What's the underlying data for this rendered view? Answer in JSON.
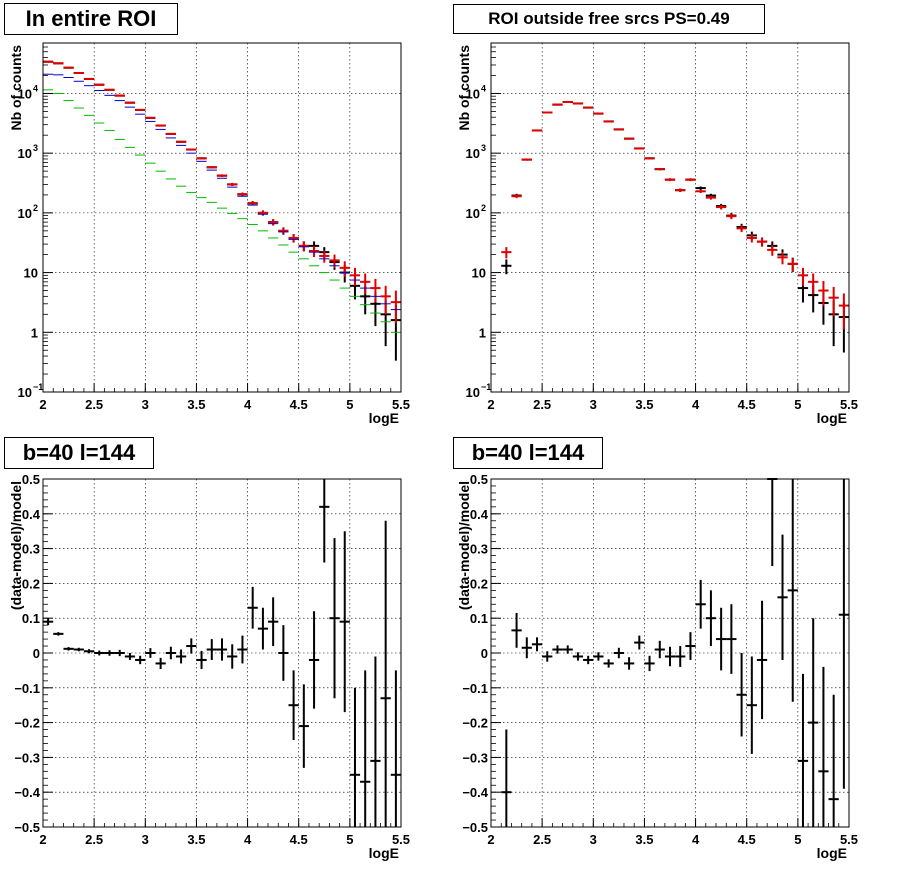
{
  "chart_data": [
    {
      "type": "line",
      "title": "In entire ROI",
      "xlabel": "logE",
      "ylabel": "Nb of counts",
      "xlim": [
        2,
        5.5
      ],
      "ylim": [
        0.1,
        70000
      ],
      "yscale": "log",
      "grid": true,
      "x_ticks": [
        "2",
        "2.5",
        "3",
        "3.5",
        "4",
        "4.5",
        "5",
        "5.5"
      ],
      "y_ticks": [
        {
          "value": 0.1,
          "base": "10",
          "exp": "−1"
        },
        {
          "value": 1,
          "text": "1"
        },
        {
          "value": 10,
          "text": "10"
        },
        {
          "value": 100,
          "base": "10",
          "exp": "2"
        },
        {
          "value": 1000,
          "base": "10",
          "exp": "3"
        },
        {
          "value": 10000,
          "base": "10",
          "exp": "4"
        }
      ],
      "x": [
        2.05,
        2.15,
        2.25,
        2.35,
        2.45,
        2.55,
        2.65,
        2.75,
        2.85,
        2.95,
        3.05,
        3.15,
        3.25,
        3.35,
        3.45,
        3.55,
        3.65,
        3.75,
        3.85,
        3.95,
        4.05,
        4.15,
        4.25,
        4.35,
        4.45,
        4.55,
        4.65,
        4.75,
        4.85,
        4.95,
        5.05,
        5.15,
        5.25,
        5.35,
        5.45
      ],
      "series": [
        {
          "style": "data",
          "color": "#000000",
          "values": [
            34000,
            32000,
            27000,
            22000,
            17500,
            14000,
            11500,
            9200,
            7000,
            5300,
            3900,
            2900,
            2100,
            1550,
            1150,
            820,
            580,
            420,
            300,
            205,
            145,
            100,
            70,
            50,
            38,
            28,
            28,
            22,
            15,
            10,
            6,
            4,
            3,
            2,
            1.6
          ]
        },
        {
          "style": "model",
          "color": "#e00000",
          "values": [
            34000,
            32000,
            27000,
            22000,
            17500,
            14000,
            11500,
            9200,
            7000,
            5300,
            3900,
            2900,
            2100,
            1550,
            1150,
            820,
            580,
            420,
            300,
            205,
            145,
            100,
            70,
            50,
            38,
            28,
            23,
            19,
            16,
            12,
            9,
            7,
            5.5,
            4,
            3.2
          ]
        },
        {
          "style": "model",
          "color": "#0000cc",
          "values": [
            21000,
            20500,
            18500,
            16000,
            13500,
            11200,
            9300,
            7600,
            5900,
            4500,
            3400,
            2500,
            1800,
            1350,
            1000,
            730,
            520,
            380,
            270,
            190,
            135,
            95,
            66,
            48,
            36,
            27,
            22,
            17,
            13,
            10,
            7.5,
            5.5,
            4,
            3,
            2.4
          ]
        },
        {
          "style": "model",
          "color": "#00bb00",
          "values": [
            11500,
            10000,
            7600,
            5700,
            4300,
            3200,
            2400,
            1700,
            1250,
            930,
            680,
            500,
            370,
            280,
            220,
            180,
            150,
            120,
            98,
            80,
            64,
            50,
            38,
            29,
            22,
            17,
            13,
            10,
            7.5,
            5.5,
            4,
            2.9,
            2.1,
            1.5,
            1.0
          ]
        }
      ]
    },
    {
      "type": "line",
      "title": "ROI outside free srcs PS=0.49",
      "xlabel": "logE",
      "ylabel": "Nb of counts",
      "xlim": [
        2,
        5.5
      ],
      "ylim": [
        0.1,
        70000
      ],
      "yscale": "log",
      "grid": true,
      "x_ticks": [
        "2",
        "2.5",
        "3",
        "3.5",
        "4",
        "4.5",
        "5",
        "5.5"
      ],
      "y_ticks": [
        {
          "value": 0.1,
          "base": "10",
          "exp": "−1"
        },
        {
          "value": 1,
          "text": "1"
        },
        {
          "value": 10,
          "text": "10"
        },
        {
          "value": 100,
          "base": "10",
          "exp": "2"
        },
        {
          "value": 1000,
          "base": "10",
          "exp": "3"
        },
        {
          "value": 10000,
          "base": "10",
          "exp": "4"
        }
      ],
      "x": [
        2.15,
        2.25,
        2.35,
        2.45,
        2.55,
        2.65,
        2.75,
        2.85,
        2.95,
        3.05,
        3.15,
        3.25,
        3.35,
        3.45,
        3.55,
        3.65,
        3.75,
        3.85,
        3.95,
        4.05,
        4.15,
        4.25,
        4.35,
        4.45,
        4.55,
        4.65,
        4.75,
        4.85,
        4.95,
        5.05,
        5.15,
        5.25,
        5.35,
        5.45
      ],
      "series": [
        {
          "style": "data",
          "color": "#000000",
          "values": [
            13,
            195,
            780,
            2400,
            4800,
            6500,
            7200,
            6800,
            5800,
            4600,
            3400,
            2500,
            1750,
            1200,
            820,
            540,
            360,
            240,
            360,
            260,
            195,
            130,
            90,
            58,
            42,
            33,
            28,
            20,
            14,
            5.5,
            4.2,
            3.1,
            2.0,
            1.8
          ]
        },
        {
          "style": "model",
          "color": "#e00000",
          "values": [
            22,
            190,
            780,
            2400,
            4800,
            6500,
            7200,
            6800,
            5800,
            4600,
            3400,
            2500,
            1750,
            1200,
            820,
            540,
            360,
            240,
            360,
            230,
            180,
            125,
            88,
            55,
            38,
            33,
            24,
            18,
            14,
            9,
            7,
            5,
            3.8,
            2.8
          ]
        }
      ]
    },
    {
      "type": "scatter",
      "title": "b=40 l=144",
      "xlabel": "logE",
      "ylabel": "(data-model)/model",
      "xlim": [
        2,
        5.5
      ],
      "ylim": [
        -0.5,
        0.5
      ],
      "grid": true,
      "x_ticks": [
        "2",
        "2.5",
        "3",
        "3.5",
        "4",
        "4.5",
        "5",
        "5.5"
      ],
      "y_ticks": [
        "−0.5",
        "−0.4",
        "−0.3",
        "−0.2",
        "−0.1",
        "0",
        "0.1",
        "0.2",
        "0.3",
        "0.4",
        "0.5"
      ],
      "x": [
        2.05,
        2.15,
        2.25,
        2.35,
        2.45,
        2.55,
        2.65,
        2.75,
        2.85,
        2.95,
        3.05,
        3.15,
        3.25,
        3.35,
        3.45,
        3.55,
        3.65,
        3.75,
        3.85,
        3.95,
        4.05,
        4.15,
        4.25,
        4.35,
        4.45,
        4.55,
        4.65,
        4.75,
        4.85,
        4.95,
        5.05,
        5.15,
        5.25,
        5.35,
        5.45
      ],
      "values": [
        0.09,
        0.055,
        0.012,
        0.01,
        0.005,
        0.0,
        0.0,
        0.0,
        -0.01,
        -0.02,
        0.0,
        -0.03,
        0.0,
        -0.01,
        0.02,
        -0.02,
        0.01,
        0.01,
        -0.01,
        0.01,
        0.13,
        0.07,
        0.09,
        0.0,
        -0.15,
        -0.21,
        -0.02,
        0.42,
        0.1,
        0.09,
        -0.35,
        -0.37,
        -0.31,
        -0.13,
        -0.35
      ],
      "errors": [
        0.01,
        0.005,
        0.005,
        0.005,
        0.006,
        0.007,
        0.008,
        0.009,
        0.01,
        0.012,
        0.014,
        0.016,
        0.018,
        0.02,
        0.022,
        0.026,
        0.03,
        0.032,
        0.035,
        0.04,
        0.06,
        0.06,
        0.07,
        0.08,
        0.1,
        0.12,
        0.14,
        0.16,
        0.23,
        0.26,
        0.25,
        0.32,
        0.3,
        0.51,
        0.3
      ]
    },
    {
      "type": "scatter",
      "title": "b=40 l=144",
      "xlabel": "logE",
      "ylabel": "(data-model)/model",
      "xlim": [
        2,
        5.5
      ],
      "ylim": [
        -0.5,
        0.5
      ],
      "grid": true,
      "x_ticks": [
        "2",
        "2.5",
        "3",
        "3.5",
        "4",
        "4.5",
        "5",
        "5.5"
      ],
      "y_ticks": [
        "−0.5",
        "−0.4",
        "−0.3",
        "−0.2",
        "−0.1",
        "0",
        "0.1",
        "0.2",
        "0.3",
        "0.4",
        "0.5"
      ],
      "x": [
        2.15,
        2.25,
        2.35,
        2.45,
        2.55,
        2.65,
        2.75,
        2.85,
        2.95,
        3.05,
        3.15,
        3.25,
        3.35,
        3.45,
        3.55,
        3.65,
        3.75,
        3.85,
        3.95,
        4.05,
        4.15,
        4.25,
        4.35,
        4.45,
        4.55,
        4.65,
        4.75,
        4.85,
        4.95,
        5.05,
        5.15,
        5.25,
        5.35,
        5.45
      ],
      "values": [
        -0.4,
        0.065,
        0.015,
        0.025,
        -0.01,
        0.01,
        0.01,
        -0.01,
        -0.02,
        -0.01,
        -0.03,
        0.0,
        -0.03,
        0.03,
        -0.03,
        0.01,
        -0.01,
        -0.01,
        0.02,
        0.14,
        0.1,
        0.04,
        0.04,
        -0.12,
        -0.15,
        -0.02,
        0.5,
        0.16,
        0.18,
        -0.31,
        -0.2,
        -0.34,
        -0.42,
        0.11
      ],
      "errors": [
        0.18,
        0.05,
        0.03,
        0.02,
        0.015,
        0.012,
        0.012,
        0.012,
        0.012,
        0.012,
        0.012,
        0.015,
        0.018,
        0.02,
        0.022,
        0.025,
        0.028,
        0.03,
        0.04,
        0.07,
        0.08,
        0.09,
        0.1,
        0.12,
        0.14,
        0.17,
        0.25,
        0.18,
        0.32,
        0.25,
        0.3,
        0.3,
        0.3,
        0.5
      ]
    }
  ]
}
